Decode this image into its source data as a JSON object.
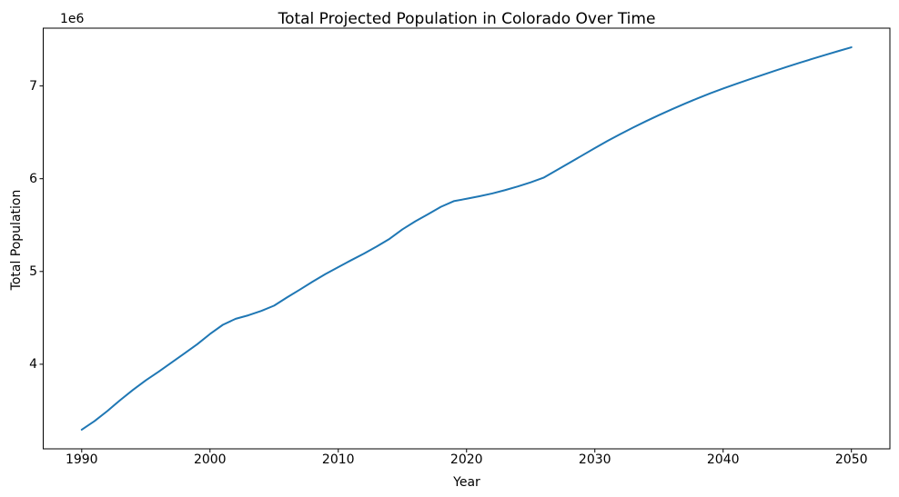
{
  "chart_data": {
    "type": "line",
    "title": "Total Projected Population in Colorado Over Time",
    "xlabel": "Year",
    "ylabel": "Total Population",
    "y_offset_label": "1e6",
    "grid": false,
    "legend": "none",
    "line_color": "#1f77b4",
    "background_color": "#ffffff",
    "axis_color": "#000000",
    "xlim": [
      1987,
      2053
    ],
    "ylim": [
      3088000,
      7623000
    ],
    "xticks": [
      1990,
      2000,
      2010,
      2020,
      2030,
      2040,
      2050
    ],
    "xtick_labels": [
      "1990",
      "2000",
      "2010",
      "2020",
      "2030",
      "2040",
      "2050"
    ],
    "yticks": [
      4000000,
      5000000,
      6000000,
      7000000
    ],
    "ytick_labels": [
      "4",
      "5",
      "6",
      "7"
    ],
    "x": [
      1990,
      1991,
      1992,
      1993,
      1994,
      1995,
      1996,
      1997,
      1998,
      1999,
      2000,
      2001,
      2002,
      2003,
      2004,
      2005,
      2006,
      2007,
      2008,
      2009,
      2010,
      2011,
      2012,
      2013,
      2014,
      2015,
      2016,
      2017,
      2018,
      2019,
      2020,
      2021,
      2022,
      2023,
      2024,
      2025,
      2026,
      2027,
      2028,
      2029,
      2030,
      2031,
      2032,
      2033,
      2034,
      2035,
      2036,
      2037,
      2038,
      2039,
      2040,
      2041,
      2042,
      2043,
      2044,
      2045,
      2046,
      2047,
      2048,
      2049,
      2050
    ],
    "series": [
      {
        "name": "Total Projected Population",
        "values": [
          3294000,
          3387000,
          3496000,
          3613000,
          3724000,
          3827000,
          3920000,
          4018000,
          4116000,
          4215000,
          4326000,
          4425000,
          4490000,
          4528000,
          4575000,
          4632000,
          4720000,
          4804000,
          4890000,
          4972000,
          5047000,
          5121000,
          5193000,
          5270000,
          5352000,
          5454000,
          5540000,
          5617000,
          5697000,
          5758000,
          5784000,
          5811000,
          5841000,
          5877000,
          5917000,
          5961000,
          6011000,
          6090000,
          6170000,
          6250000,
          6330000,
          6408000,
          6482000,
          6553000,
          6621000,
          6686000,
          6748000,
          6808000,
          6866000,
          6921000,
          6972000,
          7021000,
          7069000,
          7116000,
          7162000,
          7207000,
          7251000,
          7294000,
          7336000,
          7377000,
          7417000
        ]
      }
    ]
  }
}
